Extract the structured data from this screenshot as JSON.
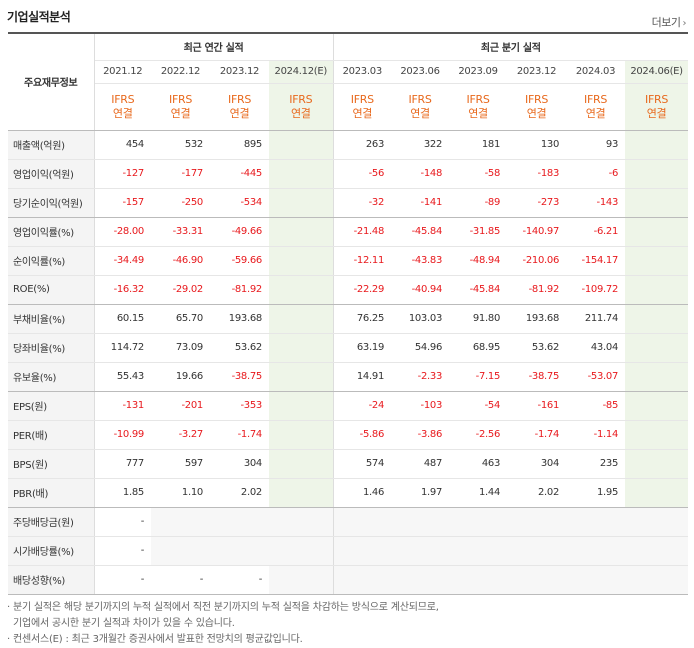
{
  "header": {
    "title": "기업실적분석",
    "more_label": "더보기"
  },
  "table": {
    "row_header": "주요재무정보",
    "annual_group": "최근 연간 실적",
    "quarter_group": "최근 분기 실적",
    "annual_periods": [
      "2021.12",
      "2022.12",
      "2023.12",
      "2024.12(E)"
    ],
    "quarter_periods": [
      "2023.03",
      "2023.06",
      "2023.09",
      "2023.12",
      "2024.03",
      "2024.06(E)"
    ],
    "basis_top": "IFRS",
    "basis_bottom": "연결",
    "rows": [
      {
        "label": "매출액(억원)",
        "annual": [
          "454",
          "532",
          "895",
          ""
        ],
        "quarter": [
          "263",
          "322",
          "181",
          "130",
          "93",
          ""
        ]
      },
      {
        "label": "영업이익(억원)",
        "annual": [
          "-127",
          "-177",
          "-445",
          ""
        ],
        "quarter": [
          "-56",
          "-148",
          "-58",
          "-183",
          "-6",
          ""
        ]
      },
      {
        "label": "당기순이익(억원)",
        "annual": [
          "-157",
          "-250",
          "-534",
          ""
        ],
        "quarter": [
          "-32",
          "-141",
          "-89",
          "-273",
          "-143",
          ""
        ]
      },
      {
        "label": "영업이익률(%)",
        "annual": [
          "-28.00",
          "-33.31",
          "-49.66",
          ""
        ],
        "quarter": [
          "-21.48",
          "-45.84",
          "-31.85",
          "-140.97",
          "-6.21",
          ""
        ]
      },
      {
        "label": "순이익률(%)",
        "annual": [
          "-34.49",
          "-46.90",
          "-59.66",
          ""
        ],
        "quarter": [
          "-12.11",
          "-43.83",
          "-48.94",
          "-210.06",
          "-154.17",
          ""
        ]
      },
      {
        "label": "ROE(%)",
        "annual": [
          "-16.32",
          "-29.02",
          "-81.92",
          ""
        ],
        "quarter": [
          "-22.29",
          "-40.94",
          "-45.84",
          "-81.92",
          "-109.72",
          ""
        ]
      },
      {
        "label": "부채비율(%)",
        "annual": [
          "60.15",
          "65.70",
          "193.68",
          ""
        ],
        "quarter": [
          "76.25",
          "103.03",
          "91.80",
          "193.68",
          "211.74",
          ""
        ]
      },
      {
        "label": "당좌비율(%)",
        "annual": [
          "114.72",
          "73.09",
          "53.62",
          ""
        ],
        "quarter": [
          "63.19",
          "54.96",
          "68.95",
          "53.62",
          "43.04",
          ""
        ]
      },
      {
        "label": "유보율(%)",
        "annual": [
          "55.43",
          "19.66",
          "-38.75",
          ""
        ],
        "quarter": [
          "14.91",
          "-2.33",
          "-7.15",
          "-38.75",
          "-53.07",
          ""
        ]
      },
      {
        "label": "EPS(원)",
        "annual": [
          "-131",
          "-201",
          "-353",
          ""
        ],
        "quarter": [
          "-24",
          "-103",
          "-54",
          "-161",
          "-85",
          ""
        ]
      },
      {
        "label": "PER(배)",
        "annual": [
          "-10.99",
          "-3.27",
          "-1.74",
          ""
        ],
        "quarter": [
          "-5.86",
          "-3.86",
          "-2.56",
          "-1.74",
          "-1.14",
          ""
        ]
      },
      {
        "label": "BPS(원)",
        "annual": [
          "777",
          "597",
          "304",
          ""
        ],
        "quarter": [
          "574",
          "487",
          "463",
          "304",
          "235",
          ""
        ]
      },
      {
        "label": "PBR(배)",
        "annual": [
          "1.85",
          "1.10",
          "2.02",
          ""
        ],
        "quarter": [
          "1.46",
          "1.97",
          "1.44",
          "2.02",
          "1.95",
          ""
        ]
      },
      {
        "label": "주당배당금(원)",
        "annual": [
          "-",
          "",
          "",
          ""
        ],
        "quarter": [
          "",
          "",
          "",
          "",
          "",
          ""
        ]
      },
      {
        "label": "시가배당률(%)",
        "annual": [
          "-",
          "",
          "",
          ""
        ],
        "quarter": [
          "",
          "",
          "",
          "",
          "",
          ""
        ]
      },
      {
        "label": "배당성향(%)",
        "annual": [
          "-",
          "-",
          "-",
          ""
        ],
        "quarter": [
          "",
          "",
          "",
          "",
          "",
          ""
        ]
      }
    ]
  },
  "notes": [
    "· 분기 실적은 해당 분기까지의 누적 실적에서 직전 분기까지의 누적 실적을 차감하는 방식으로 계산되므로,",
    "  기업에서 공시한 분기 실적과 차이가 있을 수 있습니다.",
    "· 컨센서스(E) : 최근 3개월간 증권사에서 발표한 전망치의 평균값입니다."
  ],
  "colors": {
    "negative": "#e8191d",
    "ifrs": "#e8691d",
    "estimate_bg": "#eef5e8"
  }
}
